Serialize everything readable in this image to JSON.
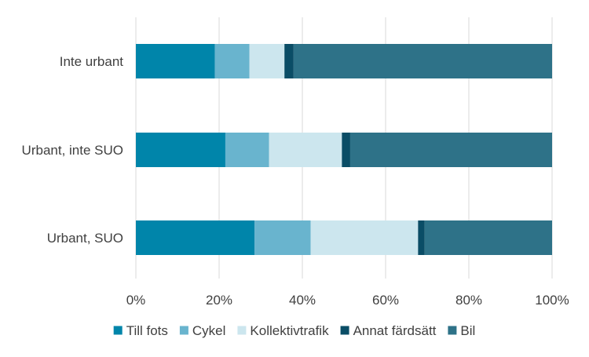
{
  "chart_data": {
    "type": "bar",
    "orientation": "horizontal",
    "stacked": true,
    "categories": [
      "Inte urbant",
      "Urbant, inte SUO",
      "Urbant, SUO"
    ],
    "series": [
      {
        "name": "Till fots",
        "color": "#0085AA",
        "values": [
          19,
          21.5,
          28.5
        ]
      },
      {
        "name": "Cykel",
        "color": "#69B4CE",
        "values": [
          8.3,
          10.5,
          13.5
        ]
      },
      {
        "name": "Kollektivtrafik",
        "color": "#CCE6EE",
        "values": [
          8.4,
          17.5,
          25.8
        ]
      },
      {
        "name": "Annat färdsätt",
        "color": "#0A4D66",
        "values": [
          2.2,
          2,
          1.6
        ]
      },
      {
        "name": "Bil",
        "color": "#2E7288",
        "values": [
          62.1,
          48.5,
          30.6
        ]
      }
    ],
    "xlim": [
      0,
      100
    ],
    "xticks": [
      "0%",
      "20%",
      "40%",
      "60%",
      "80%",
      "100%"
    ],
    "grid": true,
    "legend_position": "bottom",
    "title": "",
    "xlabel": "",
    "ylabel": ""
  }
}
